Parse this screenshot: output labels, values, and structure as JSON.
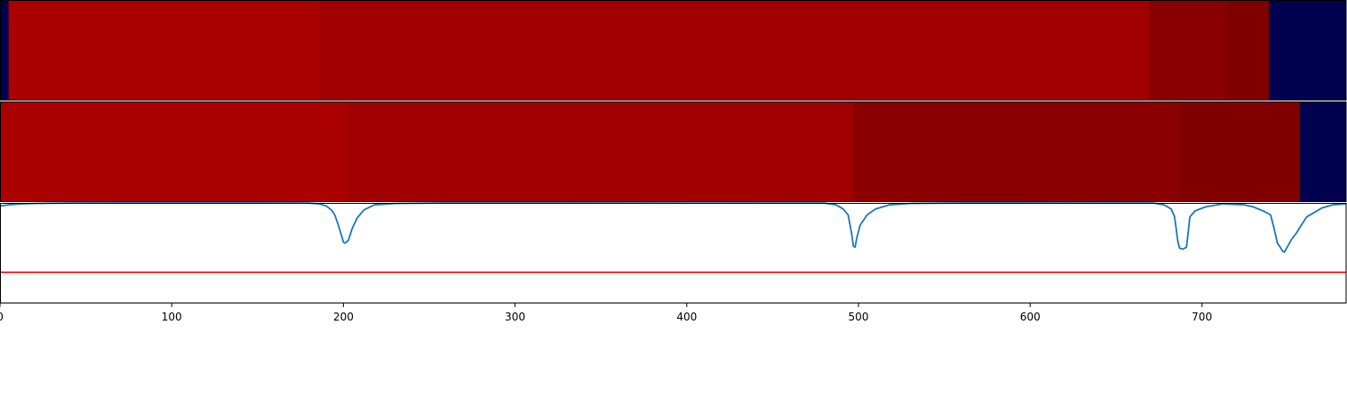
{
  "chart_data": [
    {
      "type": "heatmap",
      "panel": "top",
      "xlim": [
        0,
        784
      ],
      "segments": [
        {
          "start": 0,
          "end": 5,
          "color": "#000050"
        },
        {
          "start": 5,
          "end": 186,
          "color": "#aa0000"
        },
        {
          "start": 186,
          "end": 669,
          "color": "#a10000"
        },
        {
          "start": 669,
          "end": 714,
          "color": "#8a0000"
        },
        {
          "start": 714,
          "end": 739,
          "color": "#800000"
        },
        {
          "start": 739,
          "end": 784,
          "color": "#000050"
        }
      ]
    },
    {
      "type": "heatmap",
      "panel": "middle",
      "xlim": [
        0,
        784
      ],
      "segments": [
        {
          "start": 0,
          "end": 201,
          "color": "#aa0000"
        },
        {
          "start": 201,
          "end": 497,
          "color": "#a10000"
        },
        {
          "start": 497,
          "end": 687,
          "color": "#8a0000"
        },
        {
          "start": 687,
          "end": 757,
          "color": "#800000"
        },
        {
          "start": 757,
          "end": 784,
          "color": "#000050"
        }
      ]
    },
    {
      "type": "line",
      "panel": "bottom",
      "xlim": [
        0,
        784
      ],
      "ylim": [
        0,
        1
      ],
      "grid": false,
      "threshold": {
        "y": 0.31,
        "color": "#ff0000"
      },
      "series": [
        {
          "color": "#1f77b4",
          "points": [
            [
              0,
              0.97
            ],
            [
              5,
              0.98
            ],
            [
              12,
              0.99
            ],
            [
              20,
              0.995
            ],
            [
              40,
              0.999
            ],
            [
              150,
              1.0
            ],
            [
              180,
              0.998
            ],
            [
              186,
              0.99
            ],
            [
              190,
              0.97
            ],
            [
              193,
              0.93
            ],
            [
              195,
              0.88
            ],
            [
              197,
              0.78
            ],
            [
              199,
              0.67
            ],
            [
              200,
              0.61
            ],
            [
              201,
              0.6
            ],
            [
              203,
              0.63
            ],
            [
              205,
              0.74
            ],
            [
              208,
              0.85
            ],
            [
              212,
              0.93
            ],
            [
              218,
              0.98
            ],
            [
              230,
              0.995
            ],
            [
              260,
              1.0
            ],
            [
              480,
              0.998
            ],
            [
              487,
              0.98
            ],
            [
              491,
              0.94
            ],
            [
              494,
              0.88
            ],
            [
              496,
              0.7
            ],
            [
              497,
              0.57
            ],
            [
              498,
              0.56
            ],
            [
              499,
              0.65
            ],
            [
              501,
              0.78
            ],
            [
              505,
              0.88
            ],
            [
              510,
              0.94
            ],
            [
              518,
              0.98
            ],
            [
              530,
              0.995
            ],
            [
              560,
              1.0
            ],
            [
              672,
              0.998
            ],
            [
              678,
              0.98
            ],
            [
              682,
              0.94
            ],
            [
              684,
              0.87
            ],
            [
              685,
              0.75
            ],
            [
              686,
              0.62
            ],
            [
              687,
              0.55
            ],
            [
              689,
              0.54
            ],
            [
              691,
              0.56
            ],
            [
              692,
              0.7
            ],
            [
              693,
              0.86
            ],
            [
              696,
              0.92
            ],
            [
              702,
              0.96
            ],
            [
              712,
              0.99
            ],
            [
              725,
              0.98
            ],
            [
              730,
              0.96
            ],
            [
              737,
              0.91
            ],
            [
              740,
              0.88
            ],
            [
              742,
              0.75
            ],
            [
              744,
              0.6
            ],
            [
              746,
              0.55
            ],
            [
              747,
              0.52
            ],
            [
              748,
              0.51
            ],
            [
              750,
              0.57
            ],
            [
              752,
              0.63
            ],
            [
              755,
              0.7
            ],
            [
              758,
              0.78
            ],
            [
              761,
              0.86
            ],
            [
              765,
              0.9
            ],
            [
              770,
              0.95
            ],
            [
              776,
              0.98
            ],
            [
              784,
              0.99
            ]
          ]
        }
      ],
      "xticks": [
        0,
        100,
        200,
        300,
        400,
        500,
        600,
        700
      ],
      "xtick_labels": [
        "0",
        "100",
        "200",
        "300",
        "400",
        "500",
        "600",
        "700"
      ]
    }
  ]
}
